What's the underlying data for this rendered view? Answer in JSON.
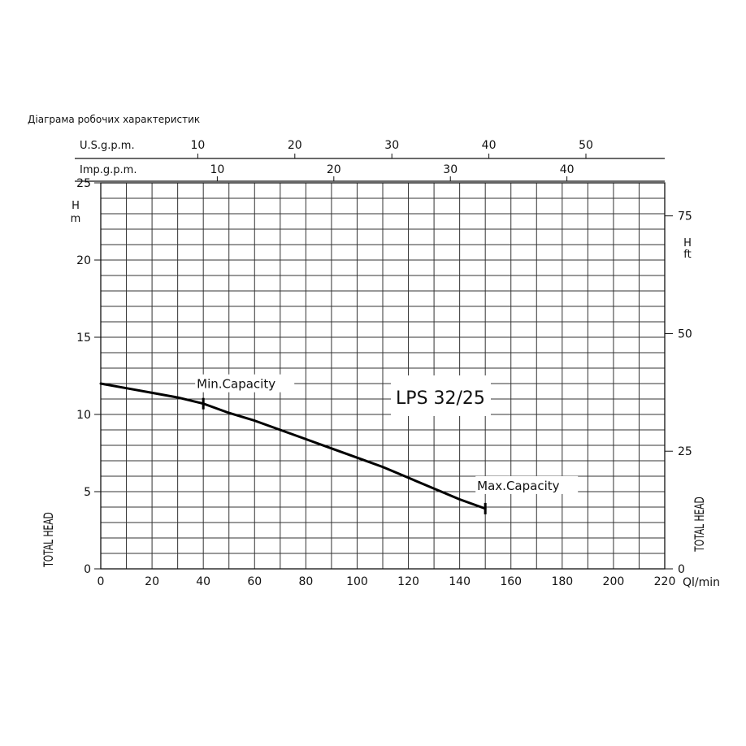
{
  "caption": "Діаграма робочих характеристик",
  "chart_data": {
    "type": "line",
    "title": "LPS 32/25",
    "xlabel": "Ql/min",
    "ylabel": "TOTAL HEAD",
    "ylabel_right": "TOTAL HEAD",
    "y_unit_left": [
      "H",
      "m"
    ],
    "y_unit_right": [
      "H",
      "ft"
    ],
    "xlim": [
      0,
      220
    ],
    "ylim": [
      0,
      25
    ],
    "x_ticks": [
      0,
      20,
      40,
      60,
      80,
      100,
      120,
      140,
      160,
      180,
      200,
      220
    ],
    "y_ticks": [
      0,
      5,
      10,
      15,
      20,
      25
    ],
    "y_right_ticks": [
      0,
      25,
      50,
      75
    ],
    "grid": true,
    "top_axes": [
      {
        "label": "U.S.g.p.m.",
        "ticks": [
          10,
          20,
          30,
          40,
          50
        ],
        "lpm_per_unit": 3.785
      },
      {
        "label": "Imp.g.p.m.",
        "ticks": [
          10,
          20,
          30,
          40
        ],
        "lpm_per_unit": 4.546
      }
    ],
    "series": [
      {
        "x": [
          0,
          10,
          20,
          30,
          40,
          50,
          60,
          70,
          80,
          90,
          100,
          110,
          120,
          130,
          140,
          150
        ],
        "y": [
          12.0,
          11.7,
          11.4,
          11.1,
          10.7,
          10.1,
          9.6,
          9.0,
          8.4,
          7.8,
          7.2,
          6.6,
          5.9,
          5.2,
          4.5,
          3.9
        ]
      }
    ],
    "annotations": [
      {
        "text": "Min.Capacity",
        "x": 40,
        "y": 10.7
      },
      {
        "text": "Max.Capacity",
        "x": 150,
        "y": 3.9
      }
    ]
  }
}
